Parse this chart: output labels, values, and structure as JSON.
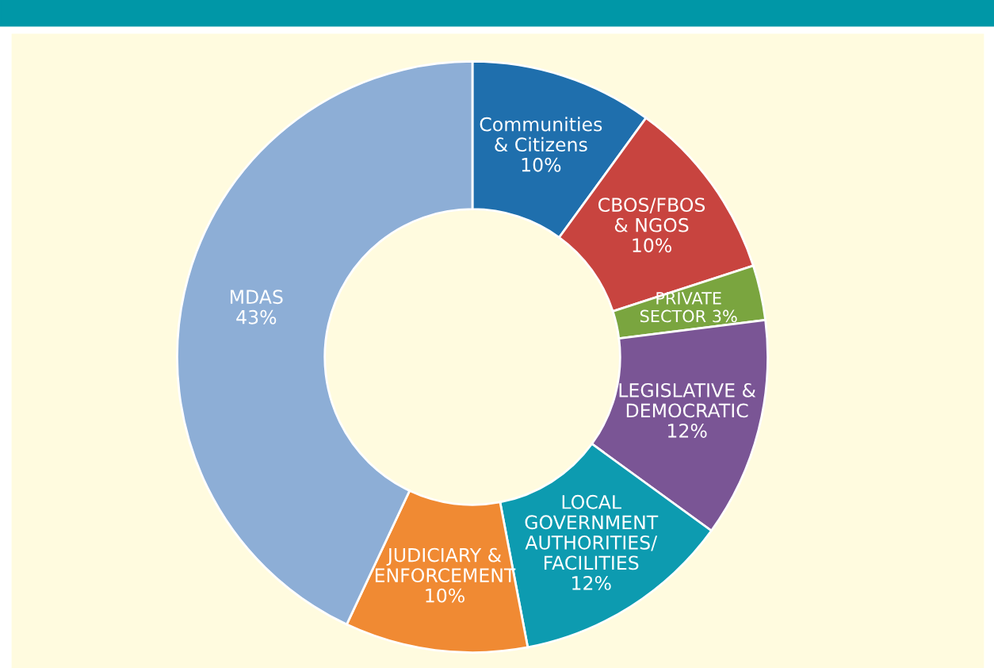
{
  "chart_data": {
    "type": "donut",
    "categories": [
      "Communities\n& Citizens",
      "CBOS/FBOS\n& NGOS",
      "PRIVATE\nSECTOR",
      "LEGISLATIVE &\nDEMOCRATIC",
      "LOCAL\nGOVERNMENT\nAUTHORITIES/\nFACILITIES",
      "JUDICIARY &\nENFORCEMENT",
      "MDAS"
    ],
    "values": [
      10,
      10,
      3,
      12,
      12,
      10,
      43
    ],
    "value_labels": [
      "10%",
      "10%",
      "3%",
      "12%",
      "12%",
      "10%",
      "43%"
    ],
    "colors": [
      "#1f6fad",
      "#c8443f",
      "#7aa53f",
      "#7a5595",
      "#0d9bb0",
      "#f08a33",
      "#8daed6"
    ],
    "legend": false
  }
}
